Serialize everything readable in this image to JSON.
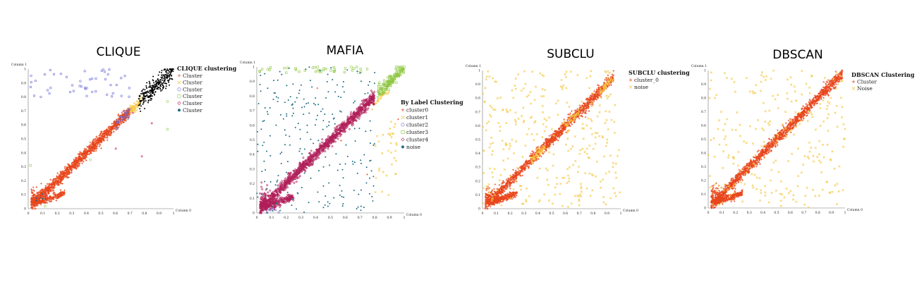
{
  "chart_data": [
    {
      "type": "scatter",
      "title": "CLIQUE",
      "xlabel": "Column 0",
      "ylabel": "Column 1",
      "xlim": [
        0,
        1
      ],
      "ylim": [
        0,
        1
      ],
      "xticks": [
        "0",
        "0.1",
        "0.2",
        "0.3",
        "0.4",
        "0.5",
        "0.6",
        "0.7",
        "0.8",
        "0.9",
        "1"
      ],
      "yticks": [
        "0",
        "0.1",
        "0.2",
        "0.3",
        "0.4",
        "0.5",
        "0.6",
        "0.7",
        "0.8",
        "0.9",
        "1"
      ],
      "legend_title": "CLIQUE clustering",
      "legend_position": "top-right",
      "series": [
        {
          "name": "Cluster",
          "marker": "plus",
          "color": "#e8461c",
          "shape": "diagonal-band-with-spur",
          "x_range": [
            0.02,
            0.7
          ],
          "approx_points": 1600
        },
        {
          "name": "Cluster",
          "marker": "cross",
          "color": "#f5c842",
          "shape": "diagonal-segment",
          "x_range": [
            0.7,
            0.78
          ],
          "approx_points": 60
        },
        {
          "name": "Cluster",
          "marker": "circle",
          "color": "#6a6ad8",
          "shape": "sparse-top-left-and-diagonal",
          "x_range": [
            0.0,
            0.7
          ],
          "approx_points": 70
        },
        {
          "name": "Cluster",
          "marker": "square",
          "color": "#9acd5a",
          "shape": "sparse",
          "x_range": [
            0.0,
            1.0
          ],
          "approx_points": 5
        },
        {
          "name": "Cluster",
          "marker": "diamond",
          "color": "#c81e62",
          "shape": "sparse",
          "x_range": [
            0.0,
            1.0
          ],
          "approx_points": 5
        },
        {
          "name": "Cluster",
          "marker": "dot",
          "color": "#1b6b80",
          "shape": "bottom-left-few",
          "x_range": [
            0.05,
            0.2
          ],
          "approx_points": 6
        },
        {
          "name": "",
          "marker": "dot",
          "color": "#000000",
          "shape": "top-right-blob",
          "x_range": [
            0.76,
            1.0
          ],
          "approx_points": 280
        }
      ]
    },
    {
      "type": "scatter",
      "title": "MAFIA",
      "xlabel": "Column 0",
      "ylabel": "Column 1",
      "xlim": [
        0,
        1
      ],
      "ylim": [
        0,
        1
      ],
      "xticks": [
        "0",
        "0.1",
        "0.2",
        "0.3",
        "0.4",
        "0.5",
        "0.6",
        "0.7",
        "0.8",
        "0.9",
        "1"
      ],
      "yticks": [
        "0",
        "0.1",
        "0.2",
        "0.3",
        "0.4",
        "0.5",
        "0.6",
        "0.7",
        "0.8",
        "0.9",
        "1"
      ],
      "legend_title": "By Label Clustering",
      "legend_position": "right",
      "series": [
        {
          "name": "cluster0",
          "marker": "plus",
          "color": "#e8461c",
          "shape": "sparse",
          "x_range": [
            0,
            1
          ],
          "approx_points": 4
        },
        {
          "name": "cluster1",
          "marker": "cross",
          "color": "#f5c842",
          "shape": "diagonal-top-and-right-edge",
          "x_range": [
            0.78,
            0.9
          ],
          "approx_points": 60
        },
        {
          "name": "cluster2",
          "marker": "circle",
          "color": "#6a6ad8",
          "shape": "bottom-edge-few",
          "x_range": [
            0.05,
            0.2
          ],
          "approx_points": 8
        },
        {
          "name": "cluster3",
          "marker": "square",
          "color": "#8dc63f",
          "shape": "top-right-blob-and-top-edge",
          "x_range": [
            0.82,
            1.0
          ],
          "approx_points": 170
        },
        {
          "name": "cluster4",
          "marker": "diamond",
          "color": "#b0205a",
          "shape": "diagonal-band-with-spur",
          "x_range": [
            0.02,
            0.8
          ],
          "approx_points": 1500
        },
        {
          "name": "noise",
          "marker": "dot",
          "color": "#1b6b80",
          "shape": "uniform-left-part",
          "x_range": [
            0.0,
            0.8
          ],
          "approx_points": 230
        }
      ]
    },
    {
      "type": "scatter",
      "title": "SUBCLU",
      "xlabel": "Column 0",
      "ylabel": "Column 1",
      "xlim": [
        0,
        1
      ],
      "ylim": [
        0,
        1
      ],
      "xticks": [
        "0",
        "0.1",
        "0.2",
        "0.3",
        "0.4",
        "0.5",
        "0.6",
        "0.7",
        "0.8",
        "0.9",
        "1"
      ],
      "yticks": [
        "0",
        "0.1",
        "0.2",
        "0.3",
        "0.4",
        "0.5",
        "0.6",
        "0.7",
        "0.8",
        "0.9",
        "1"
      ],
      "legend_title": "SUBCLU clustering",
      "legend_position": "top-right",
      "series": [
        {
          "name": "cluster_0",
          "marker": "plus",
          "color": "#e8461c",
          "shape": "diagonal-band-with-spur",
          "x_range": [
            0.02,
            0.95
          ],
          "approx_points": 1700
        },
        {
          "name": "noise",
          "marker": "cross",
          "color": "#f5c842",
          "shape": "uniform-plus-diagonal-patches",
          "x_range": [
            0.0,
            1.0
          ],
          "approx_points": 420
        }
      ]
    },
    {
      "type": "scatter",
      "title": "DBSCAN",
      "xlabel": "Column 0",
      "ylabel": "Column 1",
      "xlim": [
        0,
        1
      ],
      "ylim": [
        0,
        1
      ],
      "xticks": [
        "0",
        "0.1",
        "0.2",
        "0.3",
        "0.4",
        "0.5",
        "0.6",
        "0.7",
        "0.8",
        "0.9",
        "1"
      ],
      "yticks": [
        "0",
        "0.1",
        "0.2",
        "0.3",
        "0.4",
        "0.5",
        "0.6",
        "0.7",
        "0.8",
        "0.9",
        "1"
      ],
      "legend_title": "DBSCAN Clustering",
      "legend_position": "top-right",
      "series": [
        {
          "name": "Cluster",
          "marker": "plus",
          "color": "#e8461c",
          "shape": "diagonal-band-with-spur",
          "x_range": [
            0.02,
            0.98
          ],
          "approx_points": 1800
        },
        {
          "name": "Noise",
          "marker": "cross",
          "color": "#f5c842",
          "shape": "uniform",
          "x_range": [
            0.0,
            1.0
          ],
          "approx_points": 260
        }
      ]
    }
  ]
}
